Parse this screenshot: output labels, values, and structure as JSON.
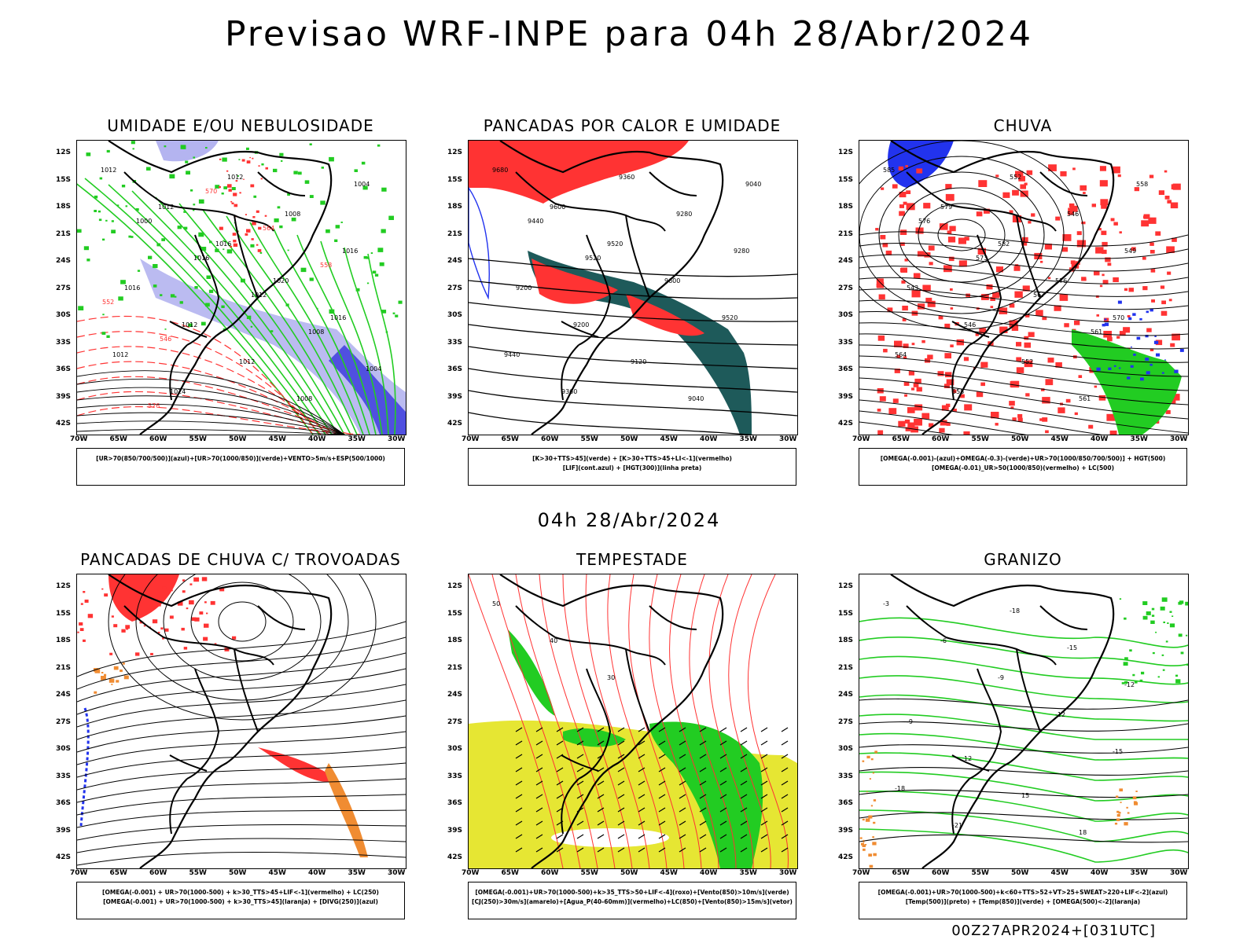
{
  "main_title": "Previsao WRF-INPE  para 04h 28/Abr/2024",
  "mid_title": "04h 28/Abr/2024",
  "footer": "00Z27APR2024+[031UTC]",
  "lat_labels": [
    "12S",
    "15S",
    "18S",
    "21S",
    "24S",
    "27S",
    "30S",
    "33S",
    "36S",
    "39S",
    "42S"
  ],
  "lon_labels": [
    "70W",
    "65W",
    "60W",
    "55W",
    "50W",
    "45W",
    "40W",
    "35W",
    "30W"
  ],
  "colors": {
    "green": "#22cc22",
    "red": "#ff3333",
    "blue": "#2233ee",
    "lavender": "#b4b4f0",
    "dark_teal": "#1e5a5a",
    "yellow": "#e6e633",
    "orange": "#f08c32"
  },
  "panels": [
    {
      "title": "UMIDADE E/OU NEBULOSIDADE",
      "legend": [
        "[UR>70(850/700/500)](azul)+[UR>70(1000/850)](verde)+VENTO>5m/s+ESP(500/1000)"
      ],
      "labels": [
        "1012",
        "1012",
        "1016",
        "1020",
        "1016",
        "1012",
        "1024",
        "1012",
        "1008",
        "1016",
        "1016",
        "1012",
        "1012",
        "1008",
        "1004",
        "1000",
        "1016",
        "1012",
        "1008",
        "1004",
        "576",
        "570",
        "564",
        "558",
        "552",
        "546"
      ]
    },
    {
      "title": "PANCADAS POR CALOR E UMIDADE",
      "legend": [
        "[K>30+TTS>45](verde) + [K>30+TTS>45+LI<-1](vermelho)",
        "[LIF](cont.azul) + [HGT(300)](linha preta)"
      ],
      "labels": [
        "9680",
        "9600",
        "9520",
        "9600",
        "9520",
        "9440",
        "9360",
        "9360",
        "9280",
        "9280",
        "9200",
        "9200",
        "9120",
        "9040",
        "9040",
        "9440",
        "9520"
      ]
    },
    {
      "title": "CHUVA",
      "legend": [
        "[OMEGA(-0.001)-(azul)+OMEGA(-0.3)-(verde)+UR>70(1000/850/700/500)] + HGT(500)",
        "[OMEGA(-0.01)_UR>50(1000/850)(vermelho) + LC(500)"
      ],
      "labels": [
        "585",
        "579",
        "582",
        "576",
        "570",
        "564",
        "558",
        "552",
        "546",
        "549",
        "543",
        "546",
        "552",
        "561",
        "558",
        "576",
        "573",
        "567",
        "561"
      ]
    },
    {
      "title": "PANCADAS DE CHUVA C/ TROVOADAS",
      "legend": [
        "[OMEGA(-0.001) + UR>70(1000-500) + k>30_TTS>45+LIF<-1](vermelho) + LC(250)",
        "[OMEGA(-0.001) + UR>70(1000-500) + k>30_TTS>45](laranja) + [DIVG(250)](azul)"
      ],
      "labels": []
    },
    {
      "title": "TEMPESTADE",
      "legend": [
        "[OMEGA(-0.001)+UR>70(1000-500)+k>35_TTS>50+LIF<-4](roxo)+[Vento(850)>10m/s](verde)",
        "[CJ(250)>30m/s](amarelo)+[Agua_P(40-60mm)](vermelho)+LC(850)+[Vento(850)>15m/s](vetor)"
      ],
      "labels": [
        "50",
        "40",
        "30"
      ]
    },
    {
      "title": "GRANIZO",
      "legend": [
        "[OMEGA(-0.001)+UR>70(1000-500)+k<60+TTS>52+VT>25+SWEAT>220+LIF<-2](azul)",
        "[Temp(500)](preto) + [Temp(850)](verde) + [OMEGA(500)<-2](laranja)"
      ],
      "labels": [
        "-3",
        "-6",
        "-9",
        "-12",
        "-15",
        "-18",
        "-21",
        "-18",
        "-15",
        "-12",
        "-9",
        "12",
        "15",
        "18"
      ]
    }
  ]
}
